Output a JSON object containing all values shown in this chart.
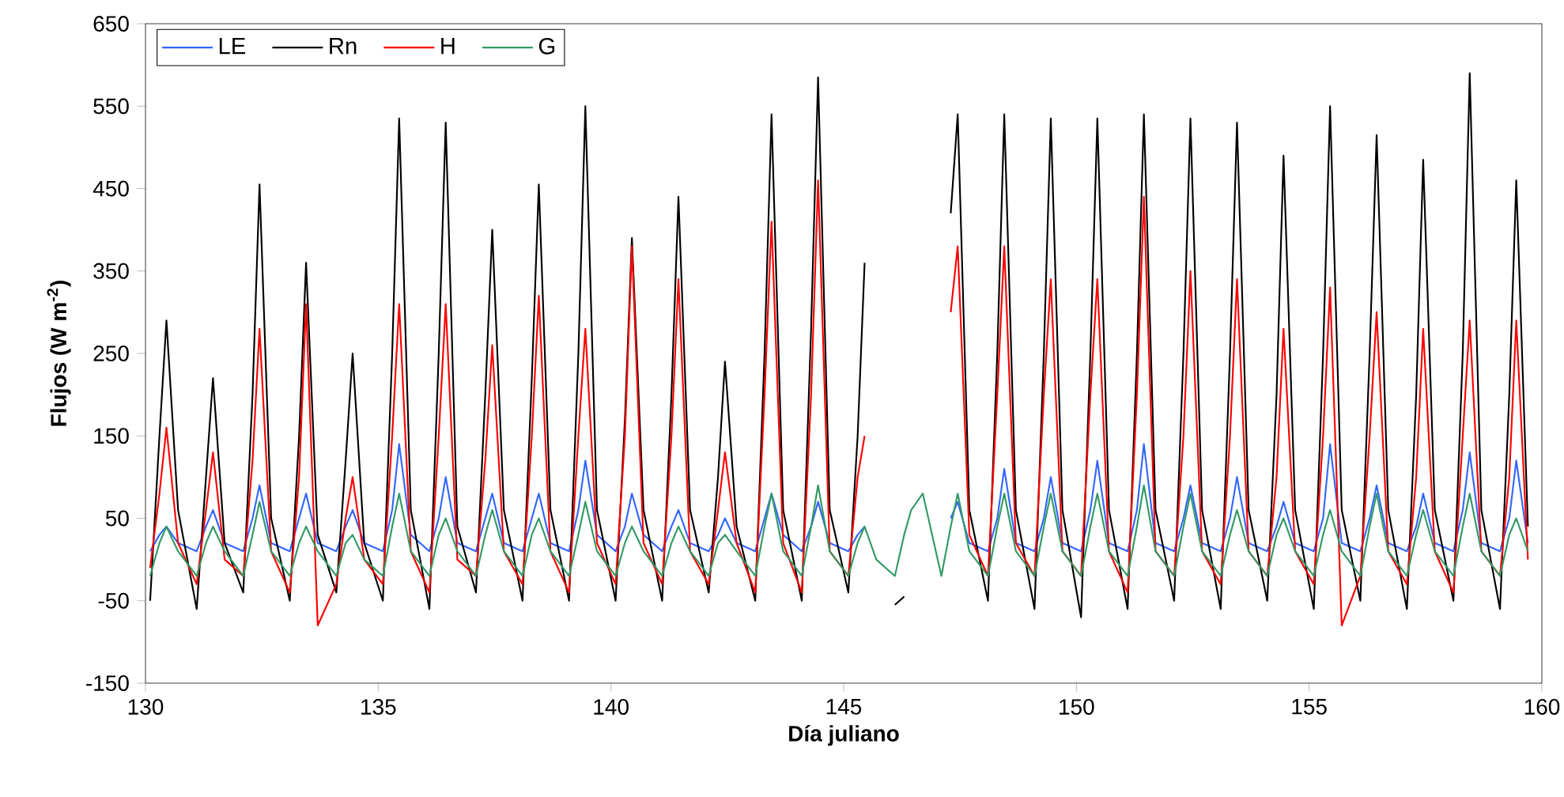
{
  "chart_data": {
    "type": "line",
    "xlabel": "Día juliano",
    "ylabel": "Flujos (W m$^{-2}$)",
    "xlim": [
      130,
      160
    ],
    "xticks": [
      130,
      135,
      140,
      145,
      150,
      155,
      160
    ],
    "ylim": [
      -150,
      650
    ],
    "yticks": [
      -150,
      -50,
      50,
      150,
      250,
      350,
      450,
      550,
      650
    ],
    "legend": "top left",
    "line_style": "solid",
    "x": [
      130.1,
      130.3,
      130.45,
      130.7,
      131.1,
      131.3,
      131.45,
      131.7,
      132.1,
      132.3,
      132.45,
      132.7,
      133.1,
      133.3,
      133.45,
      133.7,
      134.1,
      134.3,
      134.45,
      134.7,
      135.1,
      135.3,
      135.45,
      135.7,
      136.1,
      136.3,
      136.45,
      136.7,
      137.1,
      137.3,
      137.45,
      137.7,
      138.1,
      138.3,
      138.45,
      138.7,
      139.1,
      139.3,
      139.45,
      139.7,
      140.1,
      140.3,
      140.45,
      140.7,
      141.1,
      141.3,
      141.45,
      141.7,
      142.1,
      142.3,
      142.45,
      142.7,
      143.1,
      143.3,
      143.45,
      143.7,
      144.1,
      144.3,
      144.45,
      144.7,
      145.1,
      145.3,
      145.45,
      145.7,
      146.1,
      146.3,
      146.45,
      146.7,
      147.1,
      147.3,
      147.45,
      147.7,
      148.1,
      148.3,
      148.45,
      148.7,
      149.1,
      149.3,
      149.45,
      149.7,
      150.1,
      150.3,
      150.45,
      150.7,
      151.1,
      151.3,
      151.45,
      151.7,
      152.1,
      152.3,
      152.45,
      152.7,
      153.1,
      153.3,
      153.45,
      153.7,
      154.1,
      154.3,
      154.45,
      154.7,
      155.1,
      155.3,
      155.45,
      155.7,
      156.1,
      156.3,
      156.45,
      156.7,
      157.1,
      157.3,
      157.45,
      157.7,
      158.1,
      158.3,
      158.45,
      158.7,
      159.1,
      159.3,
      159.45,
      159.7
    ],
    "series": [
      {
        "name": "LE",
        "color": "#3366ff",
        "values": [
          10,
          30,
          40,
          20,
          10,
          40,
          60,
          20,
          10,
          50,
          90,
          20,
          10,
          50,
          80,
          20,
          10,
          40,
          60,
          20,
          10,
          60,
          140,
          30,
          10,
          50,
          100,
          20,
          10,
          50,
          80,
          20,
          10,
          50,
          80,
          20,
          10,
          60,
          120,
          30,
          10,
          40,
          80,
          30,
          10,
          40,
          60,
          20,
          10,
          30,
          50,
          20,
          10,
          50,
          80,
          30,
          10,
          40,
          70,
          20,
          10,
          30,
          40,
          null,
          null,
          null,
          null,
          null,
          null,
          50,
          70,
          20,
          10,
          50,
          110,
          20,
          10,
          50,
          100,
          20,
          10,
          60,
          120,
          20,
          10,
          60,
          140,
          20,
          10,
          50,
          90,
          20,
          10,
          50,
          100,
          20,
          10,
          40,
          70,
          20,
          10,
          50,
          140,
          20,
          10,
          50,
          90,
          20,
          10,
          40,
          80,
          20,
          10,
          60,
          130,
          20,
          10,
          50,
          120,
          20
        ]
      },
      {
        "name": "Rn",
        "color": "#000000",
        "values": [
          -50,
          150,
          290,
          60,
          -60,
          100,
          220,
          20,
          -40,
          200,
          455,
          50,
          -50,
          150,
          360,
          30,
          -40,
          120,
          250,
          20,
          -50,
          250,
          535,
          60,
          -60,
          250,
          530,
          40,
          -40,
          200,
          400,
          60,
          -50,
          220,
          455,
          60,
          -50,
          250,
          550,
          60,
          -50,
          170,
          390,
          60,
          -50,
          200,
          440,
          60,
          -40,
          100,
          240,
          40,
          -50,
          250,
          540,
          60,
          -50,
          280,
          585,
          60,
          -40,
          150,
          360,
          null,
          -55,
          -45,
          null,
          null,
          null,
          420,
          540,
          60,
          -50,
          250,
          540,
          60,
          -60,
          250,
          535,
          60,
          -70,
          250,
          535,
          60,
          -60,
          250,
          540,
          60,
          -50,
          250,
          535,
          60,
          -60,
          250,
          530,
          60,
          -50,
          200,
          490,
          60,
          -60,
          250,
          550,
          60,
          -50,
          250,
          515,
          60,
          -60,
          200,
          485,
          60,
          -50,
          250,
          590,
          60,
          -60,
          200,
          460,
          40
        ]
      },
      {
        "name": "H",
        "color": "#ff0000",
        "values": [
          -10,
          80,
          160,
          20,
          -30,
          60,
          130,
          0,
          -20,
          120,
          280,
          10,
          -40,
          100,
          310,
          -80,
          -30,
          50,
          100,
          0,
          -30,
          150,
          310,
          10,
          -40,
          150,
          310,
          0,
          -20,
          120,
          260,
          10,
          -30,
          150,
          320,
          10,
          -40,
          150,
          280,
          20,
          -30,
          150,
          380,
          20,
          -30,
          150,
          340,
          10,
          -30,
          60,
          130,
          20,
          -40,
          200,
          410,
          20,
          -40,
          200,
          460,
          10,
          -20,
          100,
          150,
          null,
          null,
          null,
          null,
          null,
          null,
          300,
          380,
          30,
          -20,
          200,
          380,
          20,
          -20,
          200,
          340,
          10,
          -20,
          200,
          340,
          10,
          -40,
          200,
          440,
          10,
          -20,
          150,
          350,
          10,
          -30,
          150,
          340,
          10,
          -20,
          100,
          280,
          10,
          -30,
          150,
          330,
          -80,
          -20,
          150,
          300,
          10,
          -30,
          100,
          280,
          10,
          -40,
          150,
          290,
          10,
          -20,
          100,
          290,
          0
        ]
      },
      {
        "name": "G",
        "color": "#339966",
        "values": [
          -20,
          20,
          40,
          10,
          -20,
          20,
          40,
          10,
          -20,
          30,
          70,
          10,
          -20,
          20,
          40,
          10,
          -20,
          20,
          30,
          0,
          -20,
          40,
          80,
          10,
          -20,
          30,
          50,
          10,
          -20,
          30,
          60,
          10,
          -20,
          30,
          50,
          10,
          -20,
          30,
          70,
          10,
          -20,
          20,
          40,
          10,
          -20,
          20,
          40,
          10,
          -20,
          20,
          30,
          10,
          -20,
          40,
          80,
          10,
          -20,
          40,
          90,
          10,
          -20,
          20,
          40,
          0,
          -20,
          30,
          60,
          80,
          -20,
          40,
          80,
          10,
          -20,
          40,
          80,
          10,
          -20,
          40,
          80,
          10,
          -20,
          40,
          80,
          10,
          -20,
          40,
          90,
          10,
          -20,
          40,
          80,
          10,
          -20,
          30,
          60,
          10,
          -20,
          30,
          50,
          10,
          -20,
          30,
          60,
          10,
          -20,
          40,
          80,
          10,
          -20,
          30,
          60,
          10,
          -20,
          40,
          80,
          10,
          -20,
          30,
          50,
          10
        ]
      }
    ]
  }
}
